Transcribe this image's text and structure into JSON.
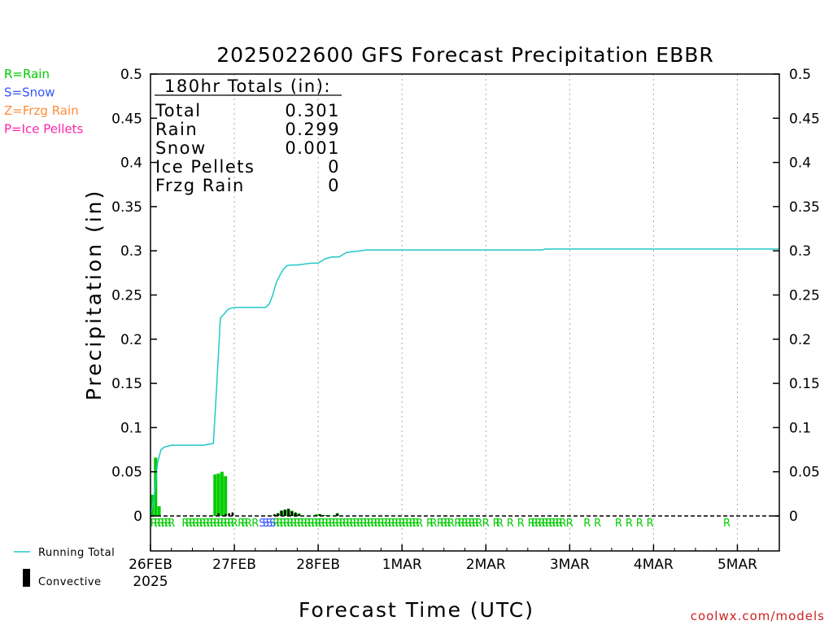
{
  "chart_data": {
    "type": "line",
    "title": "2025022600 GFS Forecast Precipitation EBBR",
    "xlabel": "Forecast Time (UTC)",
    "ylabel": "Precipitation (in)",
    "ylim": [
      0,
      0.5
    ],
    "xlim_hours": [
      0,
      180
    ],
    "y_ticks": [
      0,
      0.05,
      0.1,
      0.15,
      0.2,
      0.25,
      0.3,
      0.35,
      0.4,
      0.45,
      0.5
    ],
    "y_tick_labels": [
      "0",
      "0.05",
      "0.1",
      "0.15",
      "0.2",
      "0.25",
      "0.3",
      "0.35",
      "0.4",
      "0.45",
      "0.5"
    ],
    "x_ticks": [
      {
        "hour": 0,
        "label": "26FEB",
        "sublabel": "2025"
      },
      {
        "hour": 24,
        "label": "27FEB"
      },
      {
        "hour": 48,
        "label": "28FEB"
      },
      {
        "hour": 72,
        "label": "1MAR"
      },
      {
        "hour": 96,
        "label": "2MAR"
      },
      {
        "hour": 120,
        "label": "3MAR"
      },
      {
        "hour": 144,
        "label": "4MAR"
      },
      {
        "hour": 168,
        "label": "5MAR"
      }
    ],
    "grid": true,
    "totals_box": {
      "title": "180hr Totals (in):",
      "rows": [
        {
          "label": "Total",
          "value": "0.301"
        },
        {
          "label": "Rain",
          "value": "0.299"
        },
        {
          "label": "Snow",
          "value": "0.001"
        },
        {
          "label": "Ice Pellets",
          "value": "0"
        },
        {
          "label": "Frzg Rain",
          "value": "0"
        }
      ]
    },
    "type_legend": [
      {
        "text": "R=Rain",
        "color": "#00cc00"
      },
      {
        "text": "S=Snow",
        "color": "#3355ff"
      },
      {
        "text": "Z=Frzg Rain",
        "color": "#ff8c3a"
      },
      {
        "text": "P=Ice Pellets",
        "color": "#ff22aa"
      }
    ],
    "series_legend": [
      {
        "text": "Running Total",
        "color": "#22c8c8",
        "kind": "line"
      },
      {
        "text": "Convective",
        "color": "#000000",
        "kind": "bar"
      }
    ],
    "running_total": {
      "name": "Running Total",
      "color": "#22c8c8",
      "x": [
        0,
        1,
        2,
        3,
        4,
        6,
        9,
        12,
        15,
        18,
        19,
        20,
        21,
        22,
        23,
        24,
        27,
        30,
        33,
        34,
        35,
        36,
        37,
        38,
        39,
        40,
        42,
        44,
        46,
        48,
        50,
        52,
        54,
        56,
        58,
        60,
        62,
        64,
        66,
        68,
        70,
        72,
        80,
        90,
        100,
        112,
        113,
        125,
        140,
        160,
        180
      ],
      "values": [
        0,
        0.02,
        0.06,
        0.075,
        0.078,
        0.08,
        0.08,
        0.08,
        0.08,
        0.082,
        0.15,
        0.224,
        0.228,
        0.233,
        0.235,
        0.236,
        0.236,
        0.236,
        0.236,
        0.24,
        0.25,
        0.264,
        0.272,
        0.279,
        0.283,
        0.284,
        0.284,
        0.285,
        0.286,
        0.286,
        0.291,
        0.293,
        0.293,
        0.298,
        0.299,
        0.3,
        0.301,
        0.301,
        0.301,
        0.301,
        0.301,
        0.301,
        0.301,
        0.301,
        0.301,
        0.301,
        0.302,
        0.302,
        0.302,
        0.302,
        0.302
      ]
    },
    "precip_bars": {
      "name": "Rain",
      "color": "#00cc00",
      "x": [
        0,
        1,
        2,
        18,
        19,
        20,
        21,
        35,
        36,
        37,
        38,
        39,
        40,
        41,
        42,
        47,
        48,
        49,
        50,
        53
      ],
      "values": [
        0.024,
        0.066,
        0.011,
        0.047,
        0.048,
        0.05,
        0.045,
        0.001,
        0.003,
        0.006,
        0.007,
        0.008,
        0.006,
        0.003,
        0.003,
        0.002,
        0.002,
        0.001,
        0.001,
        0.003
      ]
    },
    "convective_bars": {
      "name": "Convective",
      "color": "#000000",
      "x": [
        19,
        21,
        22,
        23,
        35,
        36,
        37,
        38,
        39,
        40,
        41,
        42,
        48,
        49,
        53
      ],
      "values": [
        0.003,
        0.002,
        0.003,
        0.004,
        0.002,
        0.003,
        0.006,
        0.007,
        0.008,
        0.005,
        0.004,
        0.002,
        0.002,
        0.001,
        0.003
      ]
    },
    "type_markers": {
      "rain": {
        "letter": "R",
        "color": "#00cc00",
        "x": [
          1,
          2,
          3,
          4,
          5,
          6,
          10,
          11,
          12,
          13,
          14,
          15,
          16,
          17,
          18,
          19,
          20,
          21,
          22,
          23,
          24,
          26,
          27,
          28,
          30,
          36,
          37,
          38,
          39,
          40,
          41,
          42,
          43,
          44,
          45,
          46,
          47,
          48,
          49,
          50,
          51,
          52,
          53,
          54,
          55,
          56,
          57,
          58,
          59,
          60,
          61,
          62,
          63,
          64,
          65,
          66,
          67,
          68,
          69,
          70,
          71,
          72,
          73,
          74,
          75,
          76,
          77,
          80,
          81,
          83,
          84,
          85,
          86,
          88,
          89,
          90,
          91,
          92,
          93,
          94,
          96,
          99,
          100,
          103,
          106,
          109,
          110,
          111,
          112,
          113,
          114,
          115,
          116,
          117,
          118,
          120,
          125,
          128,
          134,
          137,
          140,
          143,
          165
        ]
      },
      "snow": {
        "letter": "S",
        "color": "#3355ff",
        "x": [
          32,
          33,
          34,
          35
        ]
      }
    }
  },
  "footer": {
    "credit": "coolwx.com/models"
  }
}
